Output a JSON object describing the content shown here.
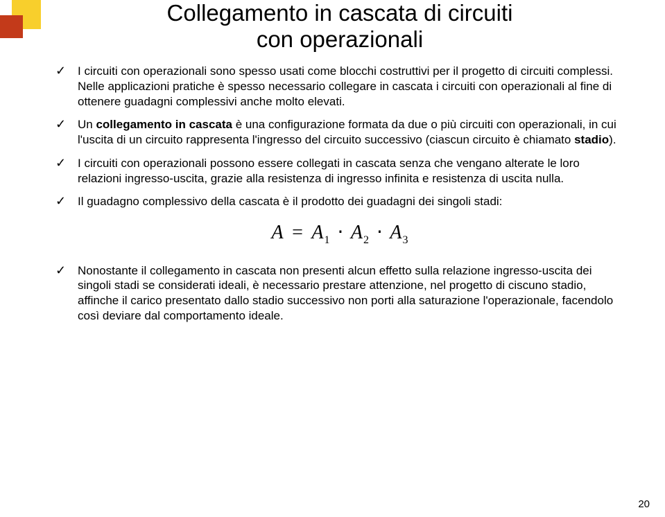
{
  "page": {
    "title_line1": "Collegamento in cascata di circuiti",
    "title_line2": "con operazionali",
    "number": "20"
  },
  "colors": {
    "deco_yellow": "#f8cf2c",
    "deco_red": "#c33a1a",
    "text": "#000000",
    "background": "#ffffff"
  },
  "bullets": {
    "b1": "I circuiti con operazionali sono spesso usati come blocchi costruttivi per il progetto di circuiti complessi. Nelle applicazioni pratiche è spesso necessario collegare in cascata i circuiti con operazionali al fine di ottenere guadagni complessivi anche molto elevati.",
    "b2_pre": "Un ",
    "b2_bold": "collegamento in cascata",
    "b2_mid": " è una configurazione formata da due o più circuiti con operazionali, in cui l'uscita di un circuito rappresenta l'ingresso del circuito successivo (ciascun circuito è chiamato ",
    "b2_bold2": "stadio",
    "b2_post": ").",
    "b3": "I circuiti con operazionali possono essere collegati in cascata senza che vengano alterate le loro relazioni ingresso-uscita, grazie alla resistenza di ingresso infinita e resistenza di uscita nulla.",
    "b4": "Il guadagno complessivo della cascata è il prodotto dei guadagni dei singoli stadi:",
    "b5": "Nonostante il collegamento in cascata non presenti alcun effetto sulla relazione ingresso-uscita dei singoli stadi se considerati ideali, è necessario prestare attenzione, nel progetto di ciscuno stadio, affinche il carico presentato dallo stadio successivo non porti alla saturazione l'operazionale, facendolo così deviare dal comportamento ideale."
  },
  "formula": {
    "A": "A",
    "eq": "=",
    "A1": "A",
    "s1": "1",
    "A2": "A",
    "s2": "2",
    "A3": "A",
    "s3": "3",
    "dot": "⋅"
  }
}
